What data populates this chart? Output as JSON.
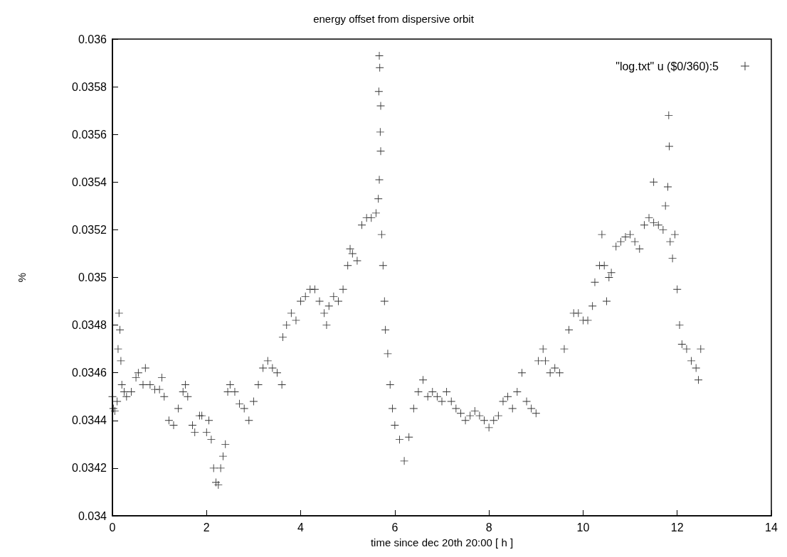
{
  "chart_data": {
    "type": "scatter",
    "title": "energy offset from dispersive orbit",
    "xlabel": "time since dec 20th 20:00 [ h ]",
    "ylabel": "%",
    "marker": "cross",
    "legend": "top right",
    "grid": false,
    "xlim": [
      0,
      14
    ],
    "xticks": [
      0,
      2,
      4,
      6,
      8,
      10,
      12,
      14
    ],
    "ylim": [
      0.034,
      0.036
    ],
    "yticks": [
      0.034,
      0.0342,
      0.0344,
      0.0346,
      0.0348,
      0.035,
      0.0352,
      0.0354,
      0.0356,
      0.0358,
      0.036
    ],
    "series": [
      {
        "name": "\"log.txt\" u ($0/360):5",
        "color": "#000000",
        "x": [
          0,
          0.02,
          0.05,
          0.1,
          0.12,
          0.14,
          0.16,
          0.18,
          0.2,
          0.25,
          0.3,
          0.4,
          0.5,
          0.55,
          0.65,
          0.7,
          0.8,
          0.9,
          1.0,
          1.05,
          1.1,
          1.2,
          1.3,
          1.4,
          1.5,
          1.55,
          1.6,
          1.7,
          1.75,
          1.85,
          1.9,
          2.0,
          2.05,
          2.1,
          2.15,
          2.2,
          2.25,
          2.3,
          2.35,
          2.4,
          2.45,
          2.5,
          2.6,
          2.7,
          2.8,
          2.9,
          3.0,
          3.1,
          3.2,
          3.3,
          3.4,
          3.5,
          3.6,
          3.62,
          3.7,
          3.8,
          3.9,
          4.0,
          4.1,
          4.2,
          4.3,
          4.4,
          4.5,
          4.55,
          4.6,
          4.7,
          4.8,
          4.9,
          5.0,
          5.05,
          5.1,
          5.2,
          5.3,
          5.4,
          5.5,
          5.6,
          5.65,
          5.67,
          5.68,
          5.66,
          5.7,
          5.69,
          5.7,
          5.67,
          5.72,
          5.75,
          5.78,
          5.8,
          5.85,
          5.9,
          5.95,
          6.0,
          6.1,
          6.2,
          6.3,
          6.4,
          6.5,
          6.6,
          6.7,
          6.8,
          6.9,
          7.0,
          7.1,
          7.2,
          7.3,
          7.4,
          7.5,
          7.6,
          7.7,
          7.8,
          7.9,
          8.0,
          8.1,
          8.2,
          8.3,
          8.4,
          8.5,
          8.6,
          8.7,
          8.8,
          8.9,
          9.0,
          9.05,
          9.15,
          9.2,
          9.3,
          9.4,
          9.5,
          9.6,
          9.7,
          9.8,
          9.9,
          10.0,
          10.1,
          10.2,
          10.25,
          10.35,
          10.4,
          10.45,
          10.5,
          10.55,
          10.6,
          10.7,
          10.8,
          10.9,
          11.0,
          11.1,
          11.2,
          11.3,
          11.4,
          11.5,
          11.5,
          11.6,
          11.7,
          11.75,
          11.8,
          11.82,
          11.83,
          11.85,
          11.9,
          11.95,
          12.0,
          12.05,
          12.1,
          12.2,
          12.3,
          12.4,
          12.45,
          12.5
        ],
        "values": [
          0.0345,
          0.03445,
          0.03444,
          0.03448,
          0.0347,
          0.03485,
          0.03478,
          0.03465,
          0.03455,
          0.03452,
          0.0345,
          0.03452,
          0.03458,
          0.0346,
          0.03455,
          0.03462,
          0.03455,
          0.03453,
          0.03453,
          0.03458,
          0.0345,
          0.0344,
          0.03438,
          0.03445,
          0.03452,
          0.03455,
          0.0345,
          0.03438,
          0.03435,
          0.03442,
          0.03442,
          0.03435,
          0.0344,
          0.03432,
          0.0342,
          0.03414,
          0.03413,
          0.0342,
          0.03425,
          0.0343,
          0.03452,
          0.03455,
          0.03452,
          0.03447,
          0.03445,
          0.0344,
          0.03448,
          0.03455,
          0.03462,
          0.03465,
          0.03462,
          0.0346,
          0.03455,
          0.03475,
          0.0348,
          0.03485,
          0.03482,
          0.0349,
          0.03492,
          0.03495,
          0.03495,
          0.0349,
          0.03485,
          0.0348,
          0.03488,
          0.03492,
          0.0349,
          0.03495,
          0.03505,
          0.03512,
          0.0351,
          0.03507,
          0.03522,
          0.03525,
          0.03525,
          0.03527,
          0.03533,
          0.03593,
          0.03588,
          0.03578,
          0.03572,
          0.03561,
          0.03553,
          0.03541,
          0.03518,
          0.03505,
          0.0349,
          0.03478,
          0.03468,
          0.03455,
          0.03445,
          0.03438,
          0.03432,
          0.03423,
          0.03433,
          0.03445,
          0.03452,
          0.03457,
          0.0345,
          0.03452,
          0.0345,
          0.03448,
          0.03452,
          0.03448,
          0.03445,
          0.03443,
          0.0344,
          0.03442,
          0.03444,
          0.03442,
          0.0344,
          0.03437,
          0.0344,
          0.03442,
          0.03448,
          0.0345,
          0.03445,
          0.03452,
          0.0346,
          0.03448,
          0.03445,
          0.03443,
          0.03465,
          0.0347,
          0.03465,
          0.0346,
          0.03462,
          0.0346,
          0.0347,
          0.03478,
          0.03485,
          0.03485,
          0.03482,
          0.03482,
          0.03488,
          0.03498,
          0.03505,
          0.03518,
          0.03505,
          0.0349,
          0.035,
          0.03502,
          0.03513,
          0.03515,
          0.03517,
          0.03518,
          0.03515,
          0.03512,
          0.03522,
          0.03525,
          0.0354,
          0.03523,
          0.03522,
          0.0352,
          0.0353,
          0.03538,
          0.03568,
          0.03555,
          0.03515,
          0.03508,
          0.03518,
          0.03495,
          0.0348,
          0.03472,
          0.0347,
          0.03465,
          0.03462,
          0.03457,
          0.0347
        ]
      }
    ]
  }
}
